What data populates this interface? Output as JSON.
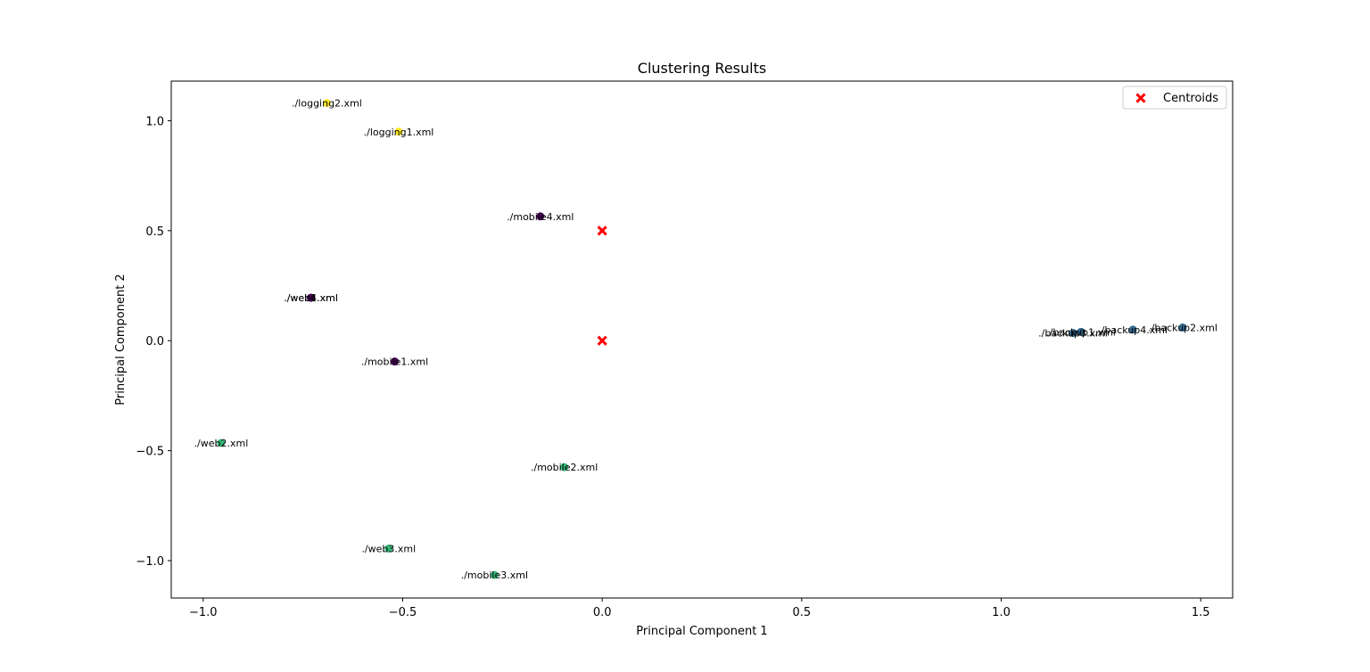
{
  "chart_data": {
    "type": "scatter",
    "title": "Clustering Results",
    "xlabel": "Principal Component 1",
    "ylabel": "Principal Component 2",
    "xlim": [
      -1.08,
      1.58
    ],
    "ylim": [
      -1.17,
      1.18
    ],
    "xticks": [
      {
        "value": -1.0,
        "label": "−1.0"
      },
      {
        "value": -0.5,
        "label": "−0.5"
      },
      {
        "value": 0.0,
        "label": "0.0"
      },
      {
        "value": 0.5,
        "label": "0.5"
      },
      {
        "value": 1.0,
        "label": "1.0"
      },
      {
        "value": 1.5,
        "label": "1.5"
      }
    ],
    "yticks": [
      {
        "value": -1.0,
        "label": "−1.0"
      },
      {
        "value": -0.5,
        "label": "−0.5"
      },
      {
        "value": 0.0,
        "label": "0.0"
      },
      {
        "value": 0.5,
        "label": "0.5"
      },
      {
        "value": 1.0,
        "label": "1.0"
      }
    ],
    "grid": false,
    "legend": {
      "position": "top-right",
      "entries": [
        {
          "label": "Centroids",
          "color": "#ff0000",
          "marker": "x"
        }
      ]
    },
    "cluster_colors": [
      "#440154",
      "#31688e",
      "#35b779",
      "#fde725"
    ],
    "points": [
      {
        "x": -0.69,
        "y": 1.08,
        "cluster": 3,
        "label": "./logging2.xml"
      },
      {
        "x": -0.51,
        "y": 0.95,
        "cluster": 3,
        "label": "./logging1.xml"
      },
      {
        "x": -0.155,
        "y": 0.565,
        "cluster": 0,
        "label": "./mobile4.xml"
      },
      {
        "x": -0.73,
        "y": 0.195,
        "cluster": 0,
        "label": "./web1.xml"
      },
      {
        "x": -0.73,
        "y": 0.195,
        "cluster": 0,
        "label": "./web4.xml"
      },
      {
        "x": -0.52,
        "y": -0.095,
        "cluster": 0,
        "label": "./mobile1.xml"
      },
      {
        "x": -0.955,
        "y": -0.465,
        "cluster": 2,
        "label": "./web2.xml"
      },
      {
        "x": -0.095,
        "y": -0.575,
        "cluster": 2,
        "label": "./mobile2.xml"
      },
      {
        "x": -0.535,
        "y": -0.945,
        "cluster": 2,
        "label": "./web3.xml"
      },
      {
        "x": -0.27,
        "y": -1.065,
        "cluster": 2,
        "label": "./mobile3.xml"
      },
      {
        "x": 1.2,
        "y": 0.04,
        "cluster": 1,
        "label": "./backup1.xml"
      },
      {
        "x": 1.18,
        "y": 0.035,
        "cluster": 1,
        "label": "./backup3.xml"
      },
      {
        "x": 1.33,
        "y": 0.05,
        "cluster": 1,
        "label": "./backup4.xml"
      },
      {
        "x": 1.455,
        "y": 0.06,
        "cluster": 1,
        "label": "./backup2.xml"
      }
    ],
    "centroids": [
      {
        "x": 0.0,
        "y": 0.5
      },
      {
        "x": 0.0,
        "y": 0.0
      }
    ]
  }
}
